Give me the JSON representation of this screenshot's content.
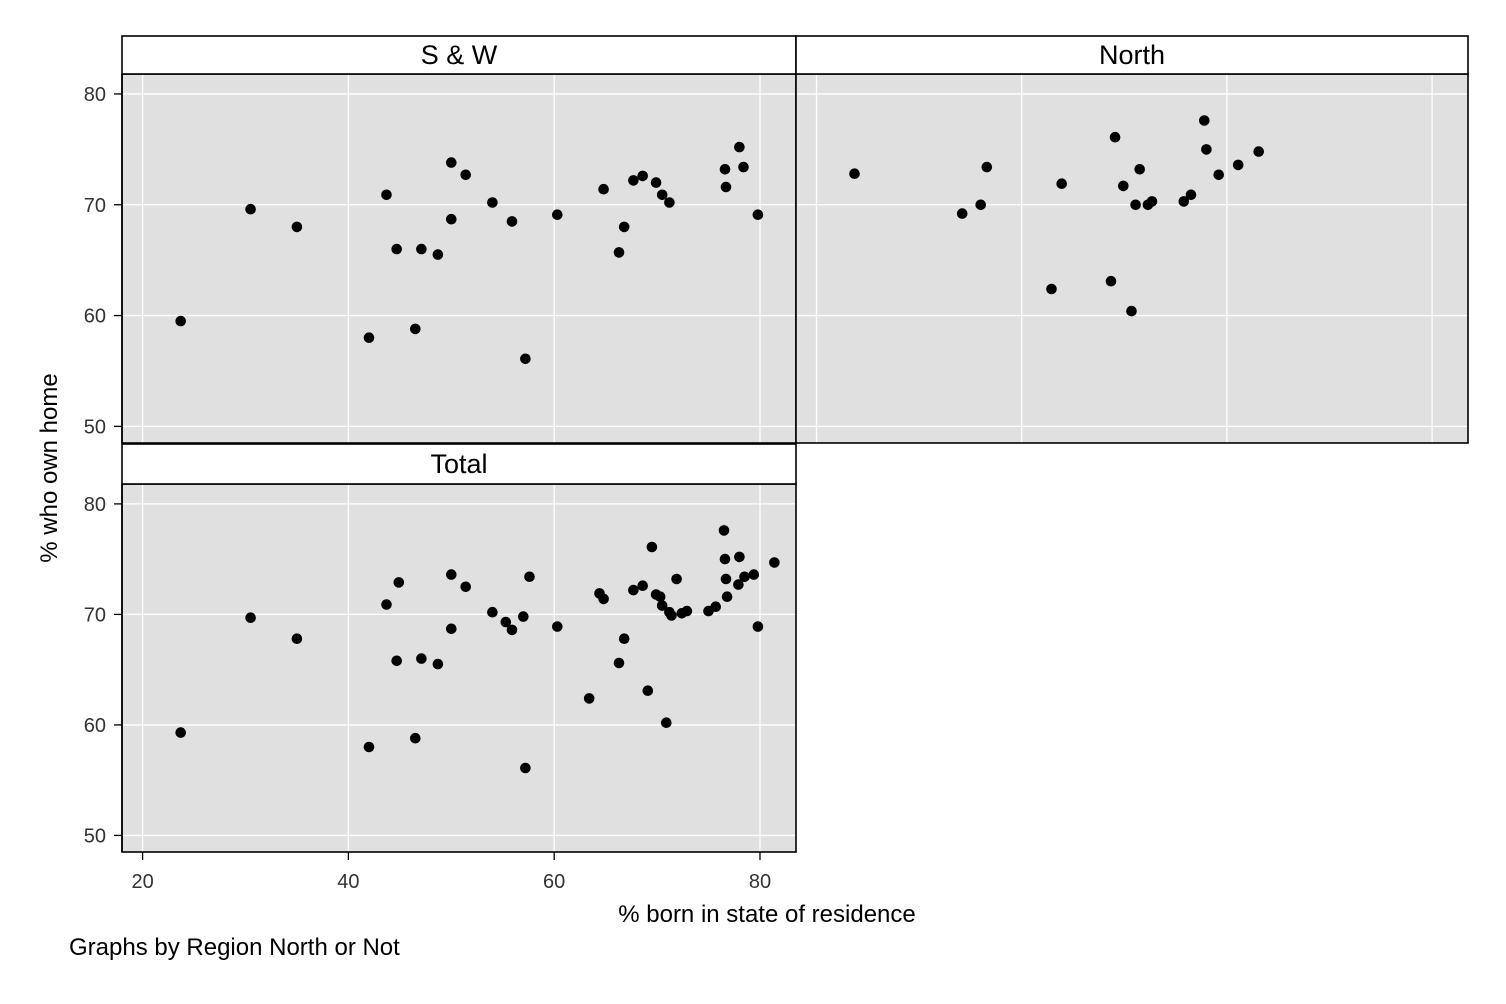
{
  "chart_data": {
    "type": "scatter",
    "facet_by": "Graphs by Region North or Not",
    "xlabel": "% born in state of residence",
    "ylabel": "% who own home",
    "xlim": [
      18,
      83.5
    ],
    "ylim": [
      48.5,
      81.8
    ],
    "x_ticks": [
      20,
      40,
      60,
      80
    ],
    "y_ticks": [
      50,
      60,
      70,
      80
    ],
    "grid": true,
    "panels": [
      {
        "title": "S & W",
        "points": [
          [
            23.7,
            59.5
          ],
          [
            30.5,
            69.6
          ],
          [
            35.0,
            68.0
          ],
          [
            42.0,
            58.0
          ],
          [
            43.7,
            70.9
          ],
          [
            44.7,
            66.0
          ],
          [
            46.5,
            58.8
          ],
          [
            47.1,
            66.0
          ],
          [
            48.7,
            65.5
          ],
          [
            50.0,
            73.8
          ],
          [
            50.0,
            68.7
          ],
          [
            51.4,
            72.7
          ],
          [
            54.0,
            70.2
          ],
          [
            55.9,
            68.5
          ],
          [
            57.2,
            56.1
          ],
          [
            60.3,
            69.1
          ],
          [
            64.8,
            71.4
          ],
          [
            66.3,
            65.7
          ],
          [
            66.8,
            68.0
          ],
          [
            67.7,
            72.2
          ],
          [
            68.6,
            72.6
          ],
          [
            69.9,
            72.0
          ],
          [
            70.5,
            70.9
          ],
          [
            71.2,
            70.2
          ],
          [
            76.6,
            73.2
          ],
          [
            76.7,
            71.6
          ],
          [
            78.0,
            75.2
          ],
          [
            78.4,
            73.4
          ],
          [
            79.8,
            69.1
          ]
        ]
      },
      {
        "title": "North",
        "points": [
          [
            23.7,
            72.8
          ],
          [
            34.2,
            69.2
          ],
          [
            36.0,
            70.0
          ],
          [
            36.6,
            73.4
          ],
          [
            42.9,
            62.4
          ],
          [
            43.9,
            71.9
          ],
          [
            48.7,
            63.1
          ],
          [
            49.1,
            76.1
          ],
          [
            49.9,
            71.7
          ],
          [
            50.7,
            60.4
          ],
          [
            51.1,
            70.0
          ],
          [
            51.5,
            73.2
          ],
          [
            52.3,
            70.0
          ],
          [
            52.7,
            70.3
          ],
          [
            55.8,
            70.3
          ],
          [
            56.5,
            70.9
          ],
          [
            57.8,
            77.6
          ],
          [
            58.0,
            75.0
          ],
          [
            59.2,
            72.7
          ],
          [
            61.1,
            73.6
          ],
          [
            63.1,
            74.8
          ]
        ]
      },
      {
        "title": "Total",
        "points": [
          [
            23.7,
            59.3
          ],
          [
            30.5,
            69.7
          ],
          [
            35.0,
            67.8
          ],
          [
            42.0,
            58.0
          ],
          [
            43.7,
            70.9
          ],
          [
            44.7,
            65.8
          ],
          [
            44.9,
            72.9
          ],
          [
            46.5,
            58.8
          ],
          [
            47.1,
            66.0
          ],
          [
            48.7,
            65.5
          ],
          [
            50.0,
            73.6
          ],
          [
            50.0,
            68.7
          ],
          [
            51.4,
            72.5
          ],
          [
            54.0,
            70.2
          ],
          [
            55.3,
            69.3
          ],
          [
            55.9,
            68.6
          ],
          [
            57.0,
            69.8
          ],
          [
            57.2,
            56.1
          ],
          [
            57.6,
            73.4
          ],
          [
            60.3,
            68.9
          ],
          [
            63.4,
            62.4
          ],
          [
            64.4,
            71.9
          ],
          [
            64.8,
            71.4
          ],
          [
            66.3,
            65.6
          ],
          [
            66.8,
            67.8
          ],
          [
            67.7,
            72.2
          ],
          [
            68.6,
            72.6
          ],
          [
            69.1,
            63.1
          ],
          [
            69.5,
            76.1
          ],
          [
            69.9,
            71.8
          ],
          [
            70.3,
            71.6
          ],
          [
            70.5,
            70.8
          ],
          [
            70.9,
            60.2
          ],
          [
            71.2,
            70.2
          ],
          [
            71.4,
            69.9
          ],
          [
            71.9,
            73.2
          ],
          [
            72.4,
            70.1
          ],
          [
            72.9,
            70.3
          ],
          [
            75.0,
            70.3
          ],
          [
            75.7,
            70.7
          ],
          [
            76.5,
            77.6
          ],
          [
            76.6,
            75.0
          ],
          [
            76.7,
            73.2
          ],
          [
            76.8,
            71.6
          ],
          [
            77.9,
            72.7
          ],
          [
            78.0,
            75.2
          ],
          [
            78.5,
            73.4
          ],
          [
            79.4,
            73.6
          ],
          [
            79.8,
            68.9
          ],
          [
            81.4,
            74.7
          ]
        ]
      }
    ]
  }
}
